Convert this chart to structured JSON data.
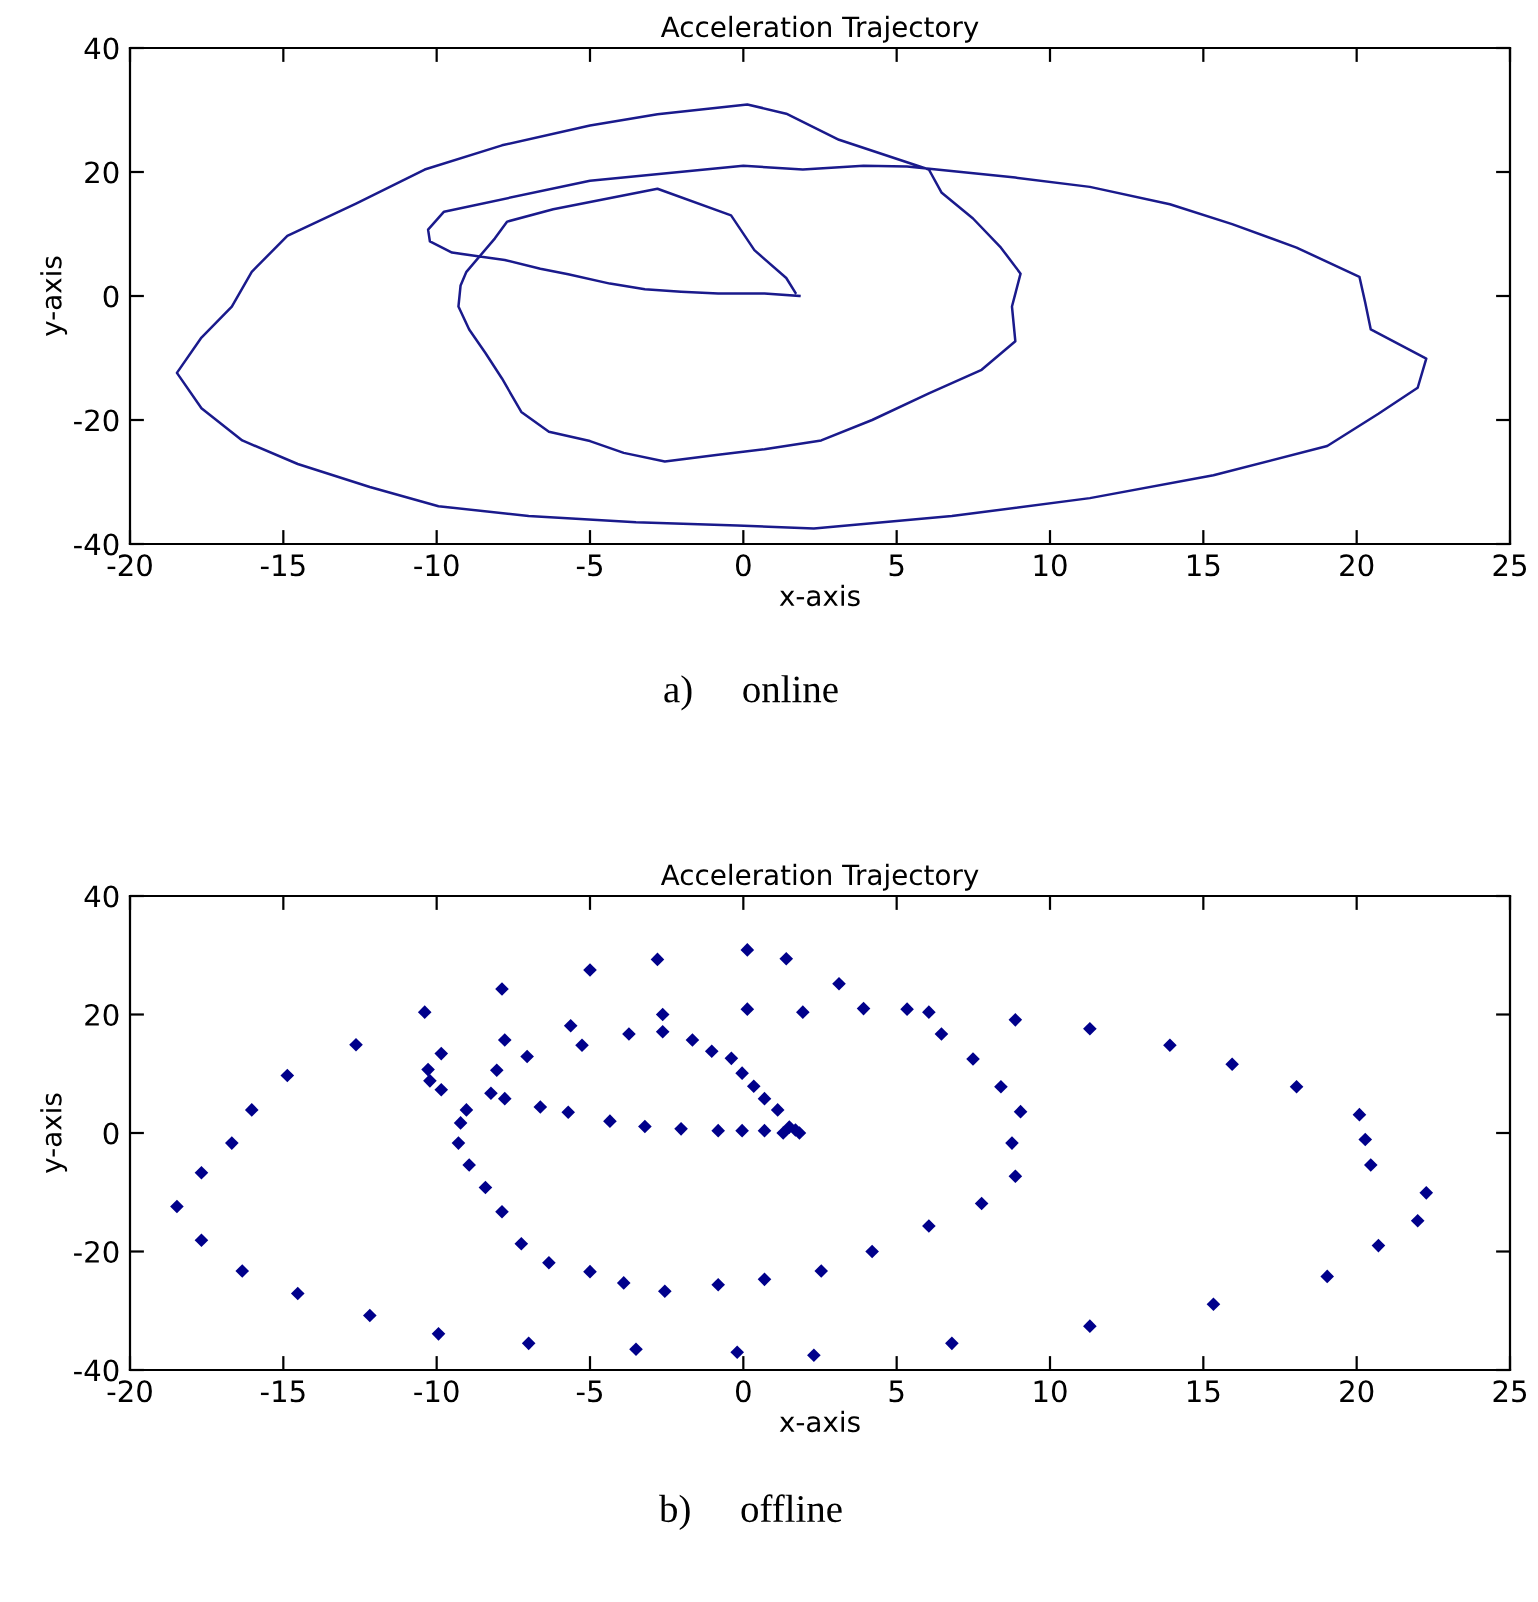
{
  "chart_data": [
    {
      "type": "line",
      "title": "Acceleration Trajectory",
      "xlabel": "x-axis",
      "ylabel": "y-axis",
      "xlim": [
        -20,
        25
      ],
      "ylim": [
        -40,
        40
      ],
      "xticks": [
        -20,
        -15,
        -10,
        -5,
        0,
        5,
        10,
        15,
        20,
        25
      ],
      "yticks": [
        -40,
        -20,
        0,
        20,
        40
      ],
      "grid": false,
      "legend": false,
      "marker": "none",
      "line_style": "solid",
      "annotations": [
        "a)     online"
      ],
      "series": [
        {
          "color": "#1a1a8c",
          "x": [
            1.83,
            0.69,
            -0.04,
            -0.82,
            -2.03,
            -3.21,
            -4.35,
            -5.71,
            -6.62,
            -7.78,
            -9.5,
            -10.22,
            -10.28,
            -9.76,
            -5.0,
            0.0,
            1.94,
            3.92,
            5.34,
            8.87,
            11.3,
            13.91,
            15.94,
            18.04,
            20.09,
            20.28,
            20.46,
            22.27,
            21.99,
            20.71,
            19.04,
            15.33,
            11.3,
            6.8,
            2.3,
            -0.2,
            -3.5,
            -7.0,
            -9.94,
            -12.18,
            -14.53,
            -16.34,
            -17.67,
            -18.47,
            -17.67,
            -16.68,
            -16.03,
            -14.87,
            -12.63,
            -10.39,
            -7.87,
            -5.0,
            -2.8,
            0.13,
            1.4,
            3.12,
            6.05,
            6.46,
            7.49,
            8.4,
            9.04,
            8.76,
            8.87,
            7.77,
            6.05,
            4.2,
            2.54,
            0.69,
            -0.82,
            -2.56,
            -3.9,
            -5.0,
            -6.34,
            -7.24,
            -7.87,
            -8.41,
            -8.94,
            -9.29,
            -9.22,
            -9.03,
            -8.1,
            -7.7,
            -6.2,
            -2.8,
            -0.4,
            0.36,
            1.4,
            1.7
          ],
          "values": [
            0.0,
            0.4,
            0.4,
            0.4,
            0.7,
            1.1,
            2.0,
            3.5,
            4.4,
            5.8,
            7.0,
            8.8,
            10.7,
            13.6,
            18.6,
            21.0,
            20.4,
            21.0,
            20.9,
            19.1,
            17.6,
            14.8,
            11.6,
            7.8,
            3.1,
            -1.1,
            -5.4,
            -10.1,
            -14.8,
            -19.0,
            -24.2,
            -28.9,
            -32.6,
            -35.5,
            -37.5,
            -37.0,
            -36.5,
            -35.5,
            -33.9,
            -30.8,
            -27.1,
            -23.3,
            -18.1,
            -12.4,
            -6.7,
            -1.7,
            3.9,
            9.7,
            14.9,
            20.4,
            24.3,
            27.5,
            29.3,
            30.9,
            29.4,
            25.2,
            20.4,
            16.7,
            12.5,
            7.8,
            3.6,
            -1.7,
            -7.3,
            -11.9,
            -15.7,
            -20.0,
            -23.3,
            -24.7,
            -25.6,
            -26.7,
            -25.3,
            -23.4,
            -21.9,
            -18.7,
            -13.3,
            -9.2,
            -5.4,
            -1.7,
            1.7,
            3.9,
            9.3,
            12.0,
            14.0,
            17.3,
            13.0,
            7.4,
            2.9,
            0.5
          ]
        }
      ]
    },
    {
      "type": "scatter",
      "title": "Acceleration Trajectory",
      "xlabel": "x-axis",
      "ylabel": "y-axis",
      "xlim": [
        -20,
        25
      ],
      "ylim": [
        -40,
        40
      ],
      "xticks": [
        -20,
        -15,
        -10,
        -5,
        0,
        5,
        10,
        15,
        20,
        25
      ],
      "yticks": [
        -40,
        -20,
        0,
        20,
        40
      ],
      "grid": false,
      "legend": false,
      "marker": "diamond",
      "annotations": [
        "b)     offline"
      ],
      "series": [
        {
          "color": "#00008b",
          "x": [
            -18.47,
            -17.67,
            -17.67,
            -16.68,
            -16.34,
            -16.03,
            -14.87,
            -14.53,
            -12.63,
            -12.18,
            -10.39,
            -10.28,
            -10.22,
            -9.85,
            -9.85,
            -9.94,
            -9.03,
            -9.22,
            -9.29,
            -8.94,
            -8.41,
            -7.87,
            -8.23,
            -8.04,
            -7.87,
            -7.78,
            -7.78,
            -7.05,
            -7.24,
            -6.62,
            -6.34,
            -5.71,
            -5.63,
            -5.26,
            -5.0,
            -5.0,
            -4.35,
            -3.9,
            -3.73,
            -3.21,
            -2.8,
            -2.63,
            -2.63,
            -2.56,
            -2.03,
            -1.66,
            -1.03,
            -0.82,
            -0.82,
            -0.39,
            -0.04,
            -0.04,
            0.13,
            0.13,
            0.34,
            0.69,
            0.69,
            0.69,
            1.12,
            1.4,
            1.3,
            1.5,
            1.7,
            1.94,
            1.83,
            3.12,
            3.92,
            5.34,
            6.05,
            6.46,
            7.49,
            8.4,
            9.04,
            8.76,
            8.87,
            7.77,
            6.05,
            4.2,
            2.54,
            8.87,
            11.3,
            13.91,
            15.94,
            18.04,
            20.09,
            20.28,
            20.46,
            22.27,
            21.99,
            20.71,
            19.04,
            15.33,
            11.3,
            6.8,
            2.3,
            -0.2,
            -3.5,
            -7.0
          ],
          "values": [
            -12.4,
            -6.7,
            -18.1,
            -1.7,
            -23.3,
            3.9,
            9.7,
            -27.1,
            14.9,
            -30.8,
            20.4,
            10.7,
            8.8,
            13.4,
            7.3,
            -33.9,
            3.9,
            1.7,
            -1.7,
            -5.4,
            -9.2,
            -13.3,
            6.7,
            10.6,
            24.3,
            15.7,
            5.8,
            12.9,
            -18.7,
            4.4,
            -21.9,
            3.5,
            18.1,
            14.8,
            27.5,
            -23.4,
            2.0,
            -25.3,
            16.7,
            1.1,
            29.3,
            20.0,
            17.1,
            -26.7,
            0.7,
            15.7,
            13.8,
            0.4,
            -25.6,
            12.6,
            10.1,
            0.4,
            30.9,
            20.9,
            7.9,
            0.4,
            -24.7,
            5.8,
            3.9,
            29.4,
            0.0,
            1.0,
            0.5,
            20.4,
            0.0,
            25.2,
            21.0,
            20.9,
            20.4,
            16.7,
            12.5,
            7.8,
            3.6,
            -1.7,
            -7.3,
            -11.9,
            -15.7,
            -20.0,
            -23.3,
            19.1,
            17.6,
            14.8,
            11.6,
            7.8,
            3.1,
            -1.1,
            -5.4,
            -10.1,
            -14.8,
            -19.0,
            -24.2,
            -28.9,
            -32.6,
            -35.5,
            -37.5,
            -37.0,
            -36.5,
            -35.5
          ]
        }
      ]
    }
  ]
}
